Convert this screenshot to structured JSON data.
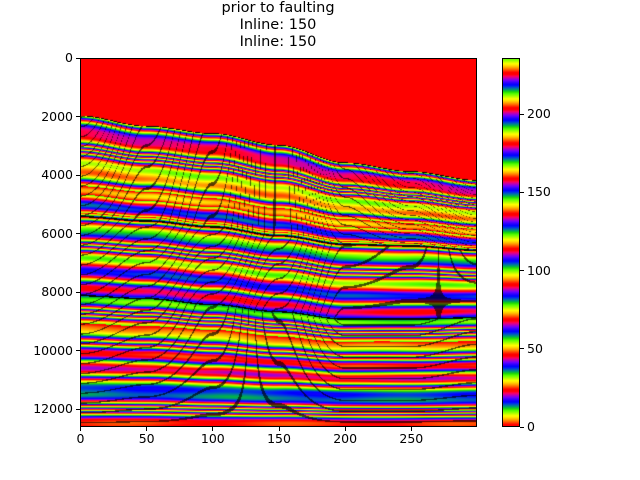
{
  "chart_data": {
    "type": "heatmap",
    "title": [
      "prior to faulting",
      "Inline: 150",
      "Inline: 150"
    ],
    "xlabel": "",
    "ylabel": "",
    "xlim": [
      0,
      300
    ],
    "ylim": [
      12600,
      0
    ],
    "y_inverted": true,
    "xticks": [
      "0",
      "50",
      "100",
      "150",
      "200",
      "250"
    ],
    "xtick_values": [
      0,
      50,
      100,
      150,
      200,
      250
    ],
    "yticks": [
      "0",
      "2000",
      "4000",
      "6000",
      "8000",
      "10000",
      "12000"
    ],
    "ytick_values": [
      0,
      2000,
      4000,
      6000,
      8000,
      10000,
      12000
    ],
    "colormap": "prism",
    "colorbar": {
      "range": [
        0,
        236
      ],
      "ticks": [
        "0",
        "50",
        "100",
        "150",
        "200"
      ],
      "tick_values": [
        0,
        50,
        100,
        150,
        200
      ]
    },
    "background_fill_color": "#ff0000",
    "horizons": [
      {
        "x": [
          0,
          50,
          100,
          150,
          200,
          250,
          300
        ],
        "y": [
          1950,
          2300,
          2550,
          2950,
          3550,
          3850,
          4150
        ]
      },
      {
        "x": [
          0,
          50,
          100,
          150,
          200,
          250,
          300
        ],
        "y": [
          5400,
          5550,
          5750,
          6050,
          6350,
          6400,
          6550
        ]
      },
      {
        "x": [
          0,
          50,
          100,
          150,
          200,
          250,
          300
        ],
        "y": [
          8100,
          8200,
          8400,
          8650,
          8900,
          8900,
          8850
        ]
      },
      {
        "x": [
          0,
          50,
          100,
          150,
          200,
          250,
          300
        ],
        "y": [
          12600,
          12600,
          12600,
          12600,
          12600,
          12600,
          12600
        ]
      }
    ],
    "grid": false
  }
}
